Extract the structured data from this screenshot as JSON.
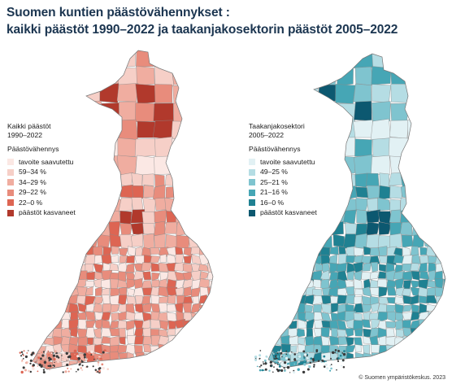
{
  "title": {
    "line1": "Suomen kuntien päästövähennykset :",
    "line2": "kaikki päästöt 1990–2022  ja taakanjakosektorin päästöt 2005–2022"
  },
  "maps": [
    {
      "legend_title": [
        "Kaikki päästöt",
        "1990–2022"
      ],
      "legend_subtitle": "Päästövähennys",
      "classes": [
        {
          "label": "tavoite saavutettu",
          "color": "#fbe8e4"
        },
        {
          "label": "59–34 %",
          "color": "#f6cfc7"
        },
        {
          "label": "34–29 %",
          "color": "#f0ada0"
        },
        {
          "label": "29–22 %",
          "color": "#e88c7c"
        },
        {
          "label": "22–0 %",
          "color": "#dd6553"
        },
        {
          "label": "päästöt kasvaneet",
          "color": "#b1392c"
        }
      ]
    },
    {
      "legend_title": [
        "Taakanjakosektori",
        "2005–2022"
      ],
      "legend_subtitle": "Päästövähennys",
      "classes": [
        {
          "label": "tavoite saavutettu",
          "color": "#e2f1f4"
        },
        {
          "label": "49–25 %",
          "color": "#b5dde4"
        },
        {
          "label": "25–21 %",
          "color": "#7fc4cf"
        },
        {
          "label": "21–16 %",
          "color": "#46a6b5"
        },
        {
          "label": "16–0 %",
          "color": "#1f8192"
        },
        {
          "label": "päästöt kasvaneet",
          "color": "#0c5870"
        }
      ]
    }
  ],
  "credit": "© Suomen ympäristökeskus. 2023"
}
